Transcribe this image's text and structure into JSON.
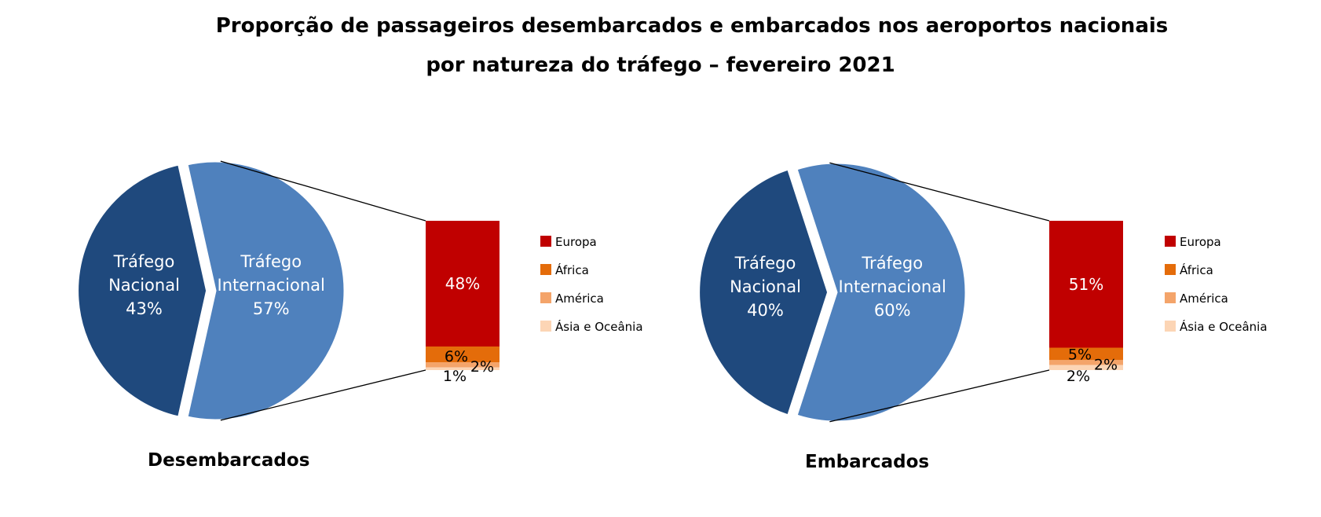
{
  "title": {
    "line1": "Proporção de passageiros desembarcados e embarcados nos aeroportos nacionais",
    "line2": "por natureza do tráfego – fevereiro 2021"
  },
  "colors": {
    "nacional": "#1f497d",
    "internacional": "#4f81bd",
    "europa": "#c00000",
    "africa": "#e46c0a",
    "america": "#f4a46a",
    "asia": "#fcd5b5"
  },
  "legend": [
    "Europa",
    "África",
    "América",
    "Ásia e Oceânia"
  ],
  "chart_data": [
    {
      "type": "pie",
      "label": "Desembarcados",
      "slices": [
        {
          "name_lines": [
            "Tráfego",
            "Nacional"
          ],
          "value": 43,
          "label": "43%"
        },
        {
          "name_lines": [
            "Tráfego",
            "Internacional"
          ],
          "value": 57,
          "label": "57%"
        }
      ],
      "breakdown": [
        {
          "name": "Europa",
          "value": 48,
          "label": "48%"
        },
        {
          "name": "África",
          "value": 6,
          "label": "6%"
        },
        {
          "name": "América",
          "value": 2,
          "label": "2%"
        },
        {
          "name": "Ásia e Oceânia",
          "value": 1,
          "label": "1%"
        }
      ]
    },
    {
      "type": "pie",
      "label": "Embarcados",
      "slices": [
        {
          "name_lines": [
            "Tráfego",
            "Nacional"
          ],
          "value": 40,
          "label": "40%"
        },
        {
          "name_lines": [
            "Tráfego",
            "Internacional"
          ],
          "value": 60,
          "label": "60%"
        }
      ],
      "breakdown": [
        {
          "name": "Europa",
          "value": 51,
          "label": "51%"
        },
        {
          "name": "África",
          "value": 5,
          "label": "5%"
        },
        {
          "name": "América",
          "value": 2,
          "label": "2%"
        },
        {
          "name": "Ásia e Oceânia",
          "value": 2,
          "label": "2%"
        }
      ]
    }
  ]
}
